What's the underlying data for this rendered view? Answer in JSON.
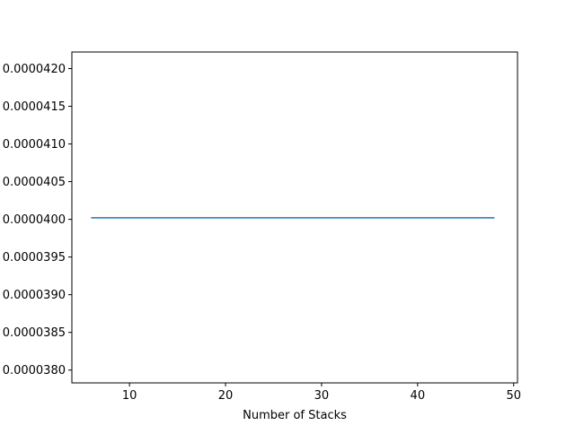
{
  "chart_data": {
    "type": "line",
    "title": "",
    "xlabel": "Number of Stacks",
    "ylabel": "",
    "xlim": [
      4,
      50.4
    ],
    "ylim": [
      3.783e-05,
      4.222e-05
    ],
    "xticks": [
      10,
      20,
      30,
      40,
      50
    ],
    "yticks": [
      3.8e-05,
      3.85e-05,
      3.9e-05,
      3.95e-05,
      4e-05,
      4.05e-05,
      4.1e-05,
      4.15e-05,
      4.2e-05
    ],
    "ytick_labels": [
      "0.0000380",
      "0.0000385",
      "0.0000390",
      "0.0000395",
      "0.0000400",
      "0.0000405",
      "0.0000410",
      "0.0000415",
      "0.0000420"
    ],
    "grid": false,
    "series": [
      {
        "color": "#1f77b4",
        "x": [
          6,
          48
        ],
        "y": [
          4.002e-05,
          4.002e-05
        ]
      }
    ]
  }
}
